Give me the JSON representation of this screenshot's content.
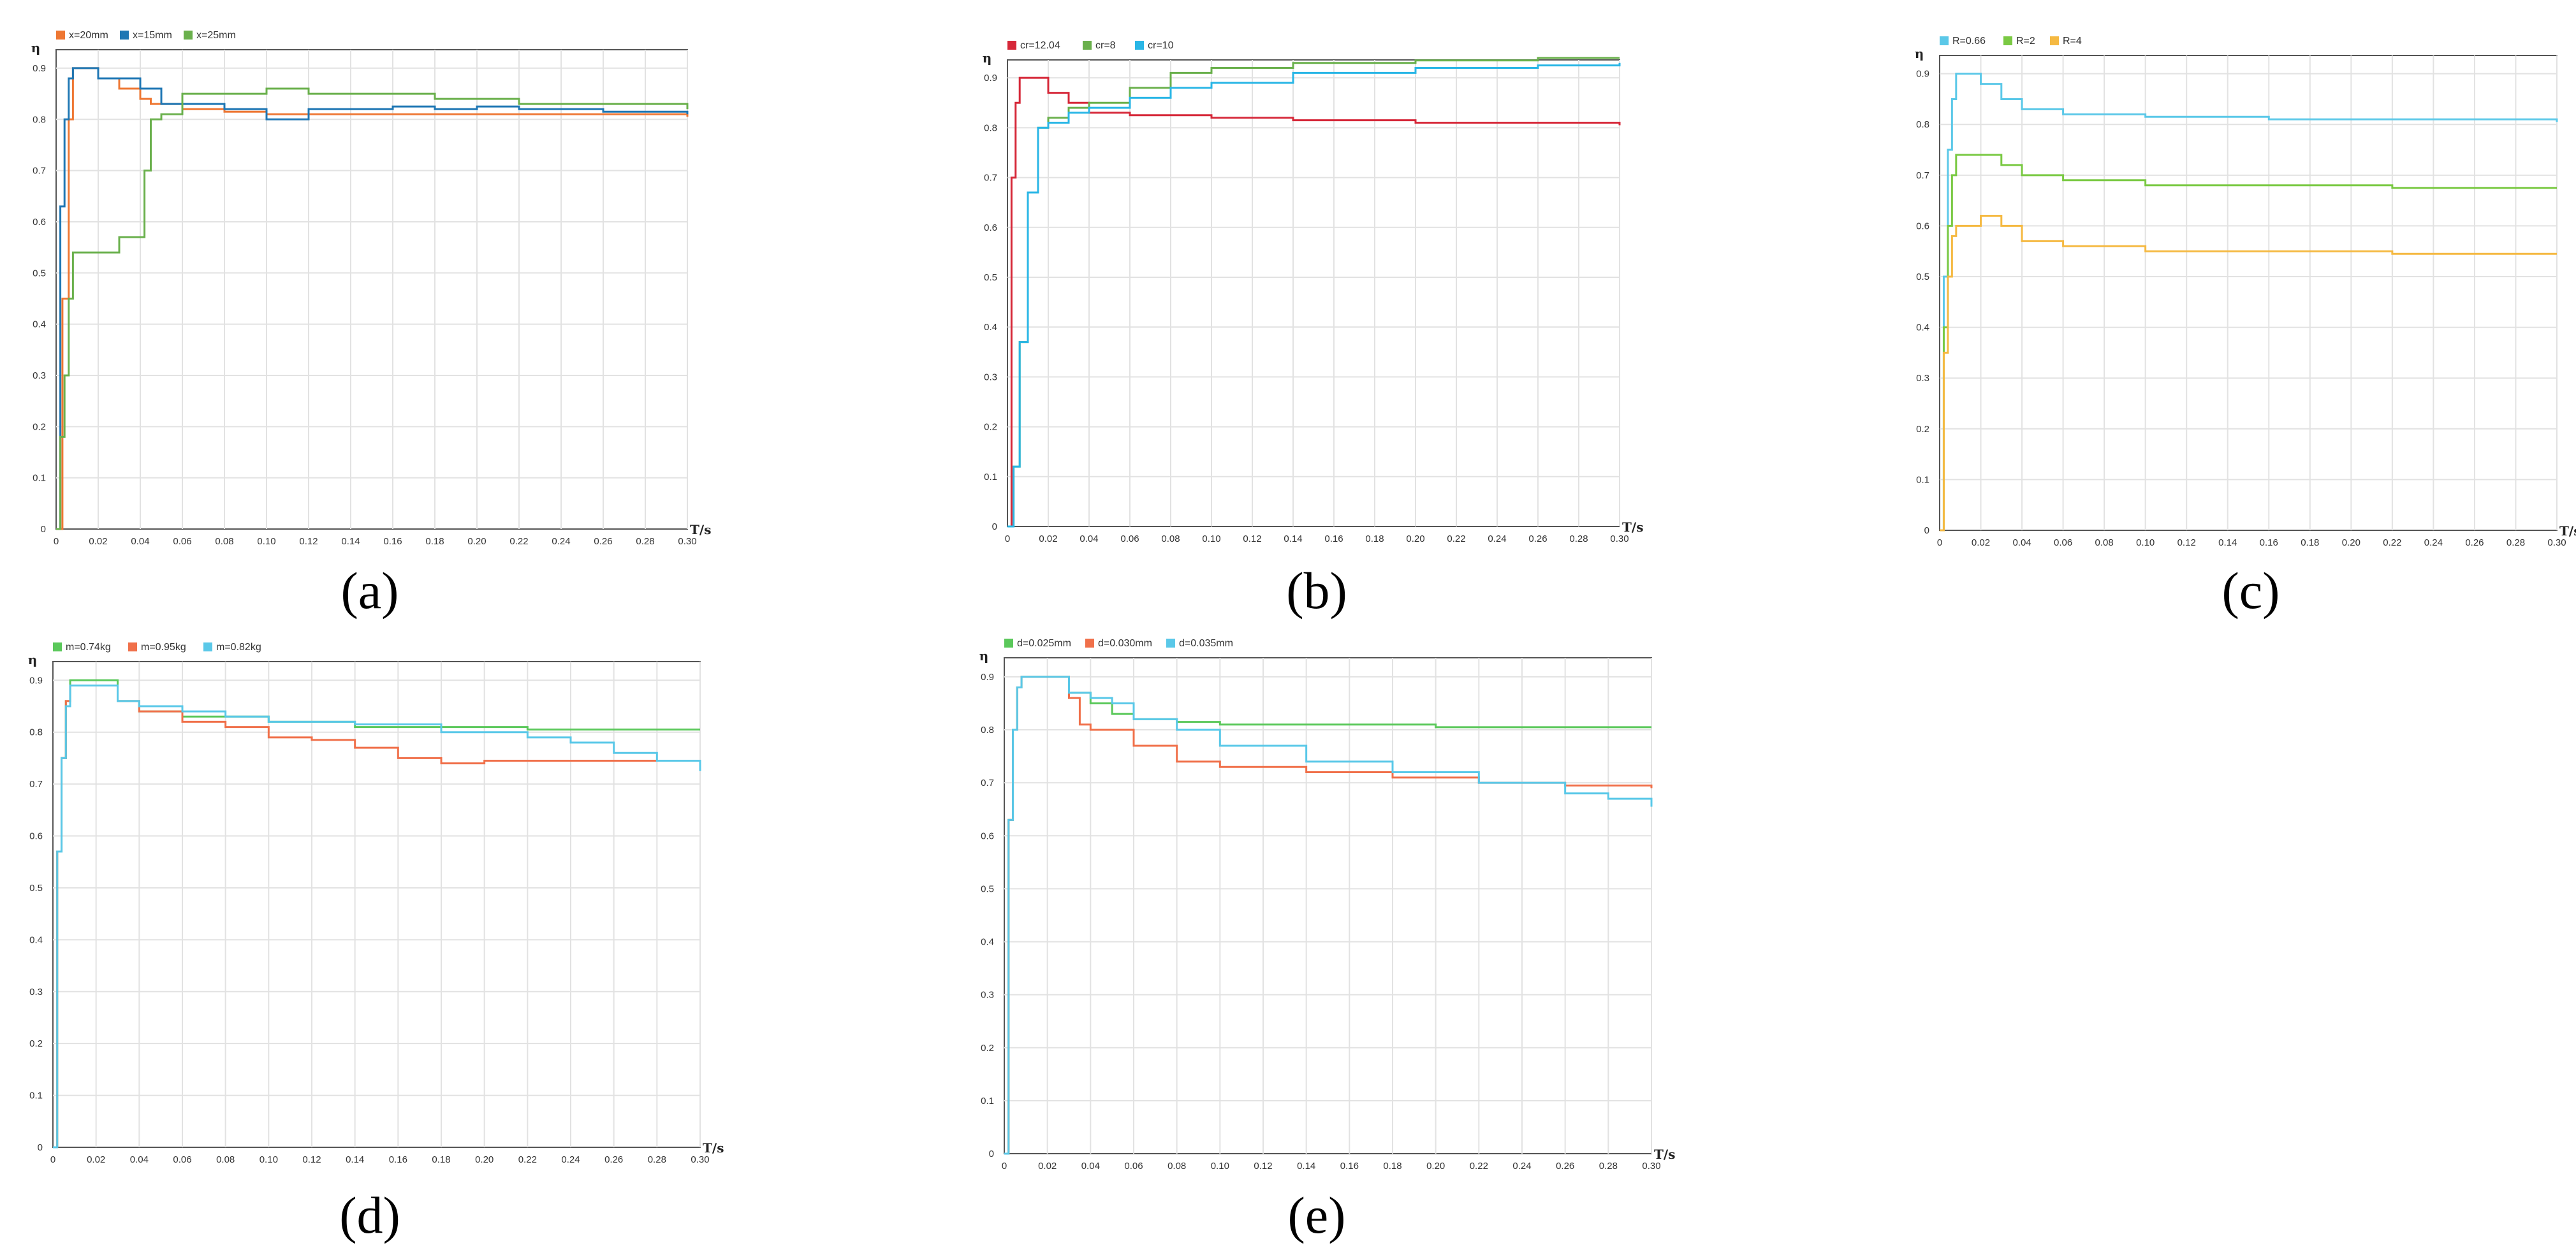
{
  "captions": [
    "(a)",
    "(b)",
    "(c)",
    "(d)",
    "(e)"
  ],
  "chart_data": [
    {
      "type": "line",
      "ylabel": "η",
      "xlabel": "T/s",
      "xlim": [
        0,
        0.3
      ],
      "ylim": [
        0,
        0.9
      ],
      "xticks": [
        "0",
        "0.02",
        "0.04",
        "0.06",
        "0.08",
        "0.10",
        "0.12",
        "0.14",
        "0.16",
        "0.18",
        "0.20",
        "0.22",
        "0.24",
        "0.26",
        "0.28",
        "0.30"
      ],
      "yticks": [
        "0",
        "0.1",
        "0.2",
        "0.3",
        "0.4",
        "0.5",
        "0.6",
        "0.7",
        "0.8",
        "0.9"
      ],
      "grid": true,
      "legend": "top-left",
      "series": [
        {
          "name": "x=20mm",
          "color": "#ee7733",
          "x": [
            0,
            0.003,
            0.006,
            0.008,
            0.02,
            0.03,
            0.04,
            0.045,
            0.05,
            0.06,
            0.08,
            0.1,
            0.14,
            0.18,
            0.22,
            0.26,
            0.3
          ],
          "y": [
            0,
            0.45,
            0.8,
            0.9,
            0.88,
            0.86,
            0.84,
            0.83,
            0.83,
            0.82,
            0.815,
            0.81,
            0.81,
            0.81,
            0.81,
            0.81,
            0.805
          ]
        },
        {
          "name": "x=15mm",
          "color": "#1f77b4",
          "x": [
            0,
            0.002,
            0.004,
            0.006,
            0.008,
            0.02,
            0.04,
            0.05,
            0.06,
            0.08,
            0.09,
            0.1,
            0.12,
            0.14,
            0.16,
            0.18,
            0.2,
            0.22,
            0.26,
            0.3
          ],
          "y": [
            0,
            0.63,
            0.8,
            0.88,
            0.9,
            0.88,
            0.86,
            0.83,
            0.83,
            0.82,
            0.82,
            0.8,
            0.82,
            0.82,
            0.825,
            0.82,
            0.825,
            0.82,
            0.815,
            0.81
          ]
        },
        {
          "name": "x=25mm",
          "color": "#6ab04c",
          "x": [
            0,
            0.002,
            0.004,
            0.006,
            0.008,
            0.02,
            0.03,
            0.04,
            0.042,
            0.045,
            0.05,
            0.06,
            0.08,
            0.1,
            0.12,
            0.14,
            0.18,
            0.22,
            0.26,
            0.3
          ],
          "y": [
            0,
            0.18,
            0.3,
            0.45,
            0.54,
            0.54,
            0.57,
            0.57,
            0.7,
            0.8,
            0.81,
            0.85,
            0.85,
            0.86,
            0.85,
            0.85,
            0.84,
            0.83,
            0.83,
            0.82
          ]
        }
      ]
    },
    {
      "type": "line",
      "ylabel": "η",
      "xlabel": "T/s",
      "xlim": [
        0,
        0.3
      ],
      "ylim": [
        0,
        0.9
      ],
      "xticks": [
        "0",
        "0.02",
        "0.04",
        "0.06",
        "0.08",
        "0.10",
        "0.12",
        "0.14",
        "0.16",
        "0.18",
        "0.20",
        "0.22",
        "0.24",
        "0.26",
        "0.28",
        "0.30"
      ],
      "yticks": [
        "0",
        "0.1",
        "0.2",
        "0.3",
        "0.4",
        "0.5",
        "0.6",
        "0.7",
        "0.8",
        "0.9"
      ],
      "grid": true,
      "legend": "top-left",
      "series": [
        {
          "name": "cr=12.04",
          "color": "#d62839",
          "x": [
            0,
            0.002,
            0.004,
            0.006,
            0.008,
            0.02,
            0.03,
            0.04,
            0.06,
            0.1,
            0.14,
            0.2,
            0.26,
            0.3
          ],
          "y": [
            0,
            0.7,
            0.85,
            0.9,
            0.9,
            0.87,
            0.85,
            0.83,
            0.825,
            0.82,
            0.815,
            0.81,
            0.81,
            0.805
          ]
        },
        {
          "name": "cr=8",
          "color": "#6ab04c",
          "x": [
            0,
            0.003,
            0.006,
            0.01,
            0.015,
            0.02,
            0.03,
            0.04,
            0.06,
            0.08,
            0.1,
            0.14,
            0.2,
            0.26,
            0.3
          ],
          "y": [
            0,
            0.12,
            0.37,
            0.67,
            0.8,
            0.82,
            0.84,
            0.85,
            0.88,
            0.91,
            0.92,
            0.93,
            0.935,
            0.94,
            0.94
          ]
        },
        {
          "name": "cr=10",
          "color": "#29b6e6",
          "x": [
            0,
            0.003,
            0.006,
            0.01,
            0.015,
            0.02,
            0.03,
            0.04,
            0.06,
            0.08,
            0.1,
            0.14,
            0.2,
            0.26,
            0.3
          ],
          "y": [
            0,
            0.12,
            0.37,
            0.67,
            0.8,
            0.81,
            0.83,
            0.84,
            0.86,
            0.88,
            0.89,
            0.91,
            0.92,
            0.925,
            0.93
          ]
        }
      ]
    },
    {
      "type": "line",
      "ylabel": "η",
      "xlabel": "T/s",
      "xlim": [
        0,
        0.3
      ],
      "ylim": [
        0,
        0.9
      ],
      "xticks": [
        "0",
        "0.02",
        "0.04",
        "0.06",
        "0.08",
        "0.10",
        "0.12",
        "0.14",
        "0.16",
        "0.18",
        "0.20",
        "0.22",
        "0.24",
        "0.26",
        "0.28",
        "0.30"
      ],
      "yticks": [
        "0",
        "0.1",
        "0.2",
        "0.3",
        "0.4",
        "0.5",
        "0.6",
        "0.7",
        "0.8",
        "0.9"
      ],
      "grid": true,
      "legend": "top-left",
      "series": [
        {
          "name": "R=0.66",
          "color": "#5bc8e8",
          "x": [
            0,
            0.002,
            0.004,
            0.006,
            0.008,
            0.02,
            0.03,
            0.04,
            0.06,
            0.1,
            0.16,
            0.22,
            0.3
          ],
          "y": [
            0,
            0.5,
            0.75,
            0.85,
            0.9,
            0.88,
            0.85,
            0.83,
            0.82,
            0.815,
            0.81,
            0.81,
            0.805
          ]
        },
        {
          "name": "R=2",
          "color": "#7ac943",
          "x": [
            0,
            0.002,
            0.004,
            0.006,
            0.008,
            0.02,
            0.03,
            0.04,
            0.06,
            0.1,
            0.16,
            0.22,
            0.3
          ],
          "y": [
            0,
            0.4,
            0.6,
            0.7,
            0.74,
            0.74,
            0.72,
            0.7,
            0.69,
            0.68,
            0.68,
            0.675,
            0.675
          ]
        },
        {
          "name": "R=4",
          "color": "#f5b942",
          "x": [
            0,
            0.002,
            0.004,
            0.006,
            0.008,
            0.02,
            0.03,
            0.04,
            0.06,
            0.1,
            0.16,
            0.22,
            0.3
          ],
          "y": [
            0,
            0.35,
            0.5,
            0.58,
            0.6,
            0.62,
            0.6,
            0.57,
            0.56,
            0.55,
            0.55,
            0.545,
            0.545
          ]
        }
      ]
    },
    {
      "type": "line",
      "ylabel": "η",
      "xlabel": "T/s",
      "xlim": [
        0,
        0.3
      ],
      "ylim": [
        0,
        0.9
      ],
      "xticks": [
        "0",
        "0.02",
        "0.04",
        "0.06",
        "0.08",
        "0.10",
        "0.12",
        "0.14",
        "0.16",
        "0.18",
        "0.20",
        "0.22",
        "0.24",
        "0.26",
        "0.28",
        "0.30"
      ],
      "yticks": [
        "0",
        "0.1",
        "0.2",
        "0.3",
        "0.4",
        "0.5",
        "0.6",
        "0.7",
        "0.8",
        "0.9"
      ],
      "grid": true,
      "legend": "top-left",
      "series": [
        {
          "name": "m=0.74kg",
          "color": "#5ac85a",
          "x": [
            0,
            0.002,
            0.004,
            0.006,
            0.008,
            0.02,
            0.03,
            0.04,
            0.06,
            0.08,
            0.1,
            0.14,
            0.18,
            0.22,
            0.26,
            0.3
          ],
          "y": [
            0,
            0.57,
            0.75,
            0.86,
            0.9,
            0.9,
            0.86,
            0.84,
            0.83,
            0.83,
            0.82,
            0.81,
            0.81,
            0.805,
            0.805,
            0.805
          ]
        },
        {
          "name": "m=0.95kg",
          "color": "#f0704a",
          "x": [
            0,
            0.002,
            0.004,
            0.006,
            0.008,
            0.02,
            0.03,
            0.04,
            0.06,
            0.08,
            0.1,
            0.12,
            0.14,
            0.16,
            0.18,
            0.2,
            0.24,
            0.28,
            0.3
          ],
          "y": [
            0,
            0.57,
            0.75,
            0.86,
            0.89,
            0.89,
            0.86,
            0.84,
            0.82,
            0.81,
            0.79,
            0.785,
            0.77,
            0.75,
            0.74,
            0.745,
            0.745,
            0.745,
            0.745
          ]
        },
        {
          "name": "m=0.82kg",
          "color": "#5ac8e8",
          "x": [
            0,
            0.002,
            0.004,
            0.006,
            0.008,
            0.02,
            0.03,
            0.04,
            0.06,
            0.08,
            0.1,
            0.14,
            0.18,
            0.22,
            0.24,
            0.26,
            0.28,
            0.3
          ],
          "y": [
            0,
            0.57,
            0.75,
            0.85,
            0.89,
            0.89,
            0.86,
            0.85,
            0.84,
            0.83,
            0.82,
            0.815,
            0.8,
            0.79,
            0.78,
            0.76,
            0.745,
            0.725
          ]
        }
      ]
    },
    {
      "type": "line",
      "ylabel": "η",
      "xlabel": "T/s",
      "xlim": [
        0,
        0.3
      ],
      "ylim": [
        0,
        0.9
      ],
      "xticks": [
        "0",
        "0.02",
        "0.04",
        "0.06",
        "0.08",
        "0.10",
        "0.12",
        "0.14",
        "0.16",
        "0.18",
        "0.20",
        "0.22",
        "0.24",
        "0.26",
        "0.28",
        "0.30"
      ],
      "yticks": [
        "0",
        "0.1",
        "0.2",
        "0.3",
        "0.4",
        "0.5",
        "0.6",
        "0.7",
        "0.8",
        "0.9"
      ],
      "grid": true,
      "legend": "top-left",
      "series": [
        {
          "name": "d=0.025mm",
          "color": "#5ac85a",
          "x": [
            0,
            0.002,
            0.004,
            0.006,
            0.008,
            0.02,
            0.03,
            0.04,
            0.05,
            0.06,
            0.08,
            0.1,
            0.14,
            0.2,
            0.26,
            0.3
          ],
          "y": [
            0,
            0.63,
            0.8,
            0.88,
            0.9,
            0.9,
            0.87,
            0.85,
            0.83,
            0.82,
            0.815,
            0.81,
            0.81,
            0.805,
            0.805,
            0.805
          ]
        },
        {
          "name": "d=0.030mm",
          "color": "#f0704a",
          "x": [
            0,
            0.002,
            0.004,
            0.006,
            0.008,
            0.02,
            0.03,
            0.035,
            0.04,
            0.06,
            0.08,
            0.1,
            0.14,
            0.18,
            0.22,
            0.26,
            0.3
          ],
          "y": [
            0,
            0.63,
            0.8,
            0.88,
            0.9,
            0.9,
            0.86,
            0.81,
            0.8,
            0.77,
            0.74,
            0.73,
            0.72,
            0.71,
            0.7,
            0.695,
            0.69
          ]
        },
        {
          "name": "d=0.035mm",
          "color": "#5ac8e8",
          "x": [
            0,
            0.002,
            0.004,
            0.006,
            0.008,
            0.02,
            0.03,
            0.04,
            0.05,
            0.06,
            0.08,
            0.1,
            0.14,
            0.18,
            0.22,
            0.26,
            0.28,
            0.3
          ],
          "y": [
            0,
            0.63,
            0.8,
            0.88,
            0.9,
            0.9,
            0.87,
            0.86,
            0.85,
            0.82,
            0.8,
            0.77,
            0.74,
            0.72,
            0.7,
            0.68,
            0.67,
            0.655
          ]
        }
      ]
    }
  ]
}
